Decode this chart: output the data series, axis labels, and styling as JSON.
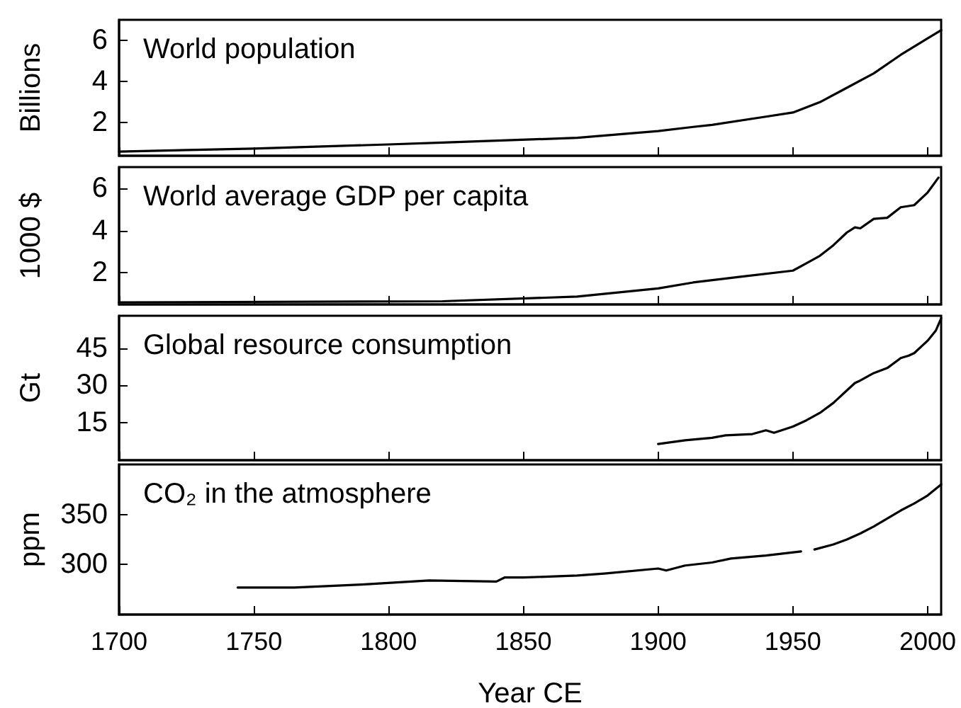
{
  "chart_data": [
    {
      "type": "line",
      "title": "World population",
      "ylabel": "Billions",
      "xlim": [
        1700,
        2005
      ],
      "xticks": [
        1700,
        1750,
        1800,
        1850,
        1900,
        1950,
        2000
      ],
      "ylim": [
        0.4,
        7
      ],
      "yticks": [
        2,
        4,
        6
      ],
      "tick_labels": "y",
      "color": "#000000",
      "x": [
        1700,
        1750,
        1800,
        1820,
        1870,
        1900,
        1913,
        1920,
        1940,
        1950,
        1960,
        1970,
        1980,
        1990,
        2000,
        2005
      ],
      "values": [
        0.6,
        0.75,
        0.95,
        1.04,
        1.27,
        1.6,
        1.8,
        1.9,
        2.3,
        2.5,
        3.0,
        3.7,
        4.4,
        5.3,
        6.1,
        6.5
      ]
    },
    {
      "type": "line",
      "title": "World average GDP per capita",
      "ylabel": "1000 $",
      "xlim": [
        1700,
        2005
      ],
      "xticks": [
        1700,
        1750,
        1800,
        1850,
        1900,
        1950,
        2000
      ],
      "ylim": [
        0.5,
        7
      ],
      "yticks": [
        2,
        4,
        6
      ],
      "tick_labels": "y",
      "color": "#000000",
      "x": [
        1700,
        1820,
        1870,
        1900,
        1913,
        1930,
        1950,
        1955,
        1960,
        1965,
        1970,
        1973,
        1975,
        1980,
        1985,
        1990,
        1995,
        2000,
        2004
      ],
      "values": [
        0.6,
        0.65,
        0.87,
        1.26,
        1.54,
        1.8,
        2.1,
        2.45,
        2.8,
        3.3,
        3.9,
        4.15,
        4.1,
        4.55,
        4.6,
        5.1,
        5.2,
        5.8,
        6.5
      ]
    },
    {
      "type": "line",
      "title": "Global resource consumption",
      "ylabel": "Gt",
      "xlim": [
        1700,
        2005
      ],
      "xticks": [
        1700,
        1750,
        1800,
        1850,
        1900,
        1950,
        2000
      ],
      "ylim": [
        0,
        58
      ],
      "yticks": [
        15,
        30,
        45
      ],
      "tick_labels": "y",
      "color": "#000000",
      "x": [
        1900,
        1910,
        1920,
        1925,
        1935,
        1940,
        1943,
        1950,
        1955,
        1960,
        1965,
        1970,
        1973,
        1975,
        1980,
        1985,
        1990,
        1993,
        1995,
        2000,
        2003,
        2005
      ],
      "values": [
        6.5,
        8,
        9,
        10,
        10.5,
        12,
        11,
        13.5,
        16,
        19,
        23,
        28,
        31,
        32,
        35,
        37,
        41,
        42,
        43,
        48,
        52,
        57
      ]
    },
    {
      "type": "line",
      "title": "CO₂ in the atmosphere",
      "ylabel": "ppm",
      "xlabel": "Year CE",
      "xlim": [
        1700,
        2005
      ],
      "xticks": [
        1700,
        1750,
        1800,
        1850,
        1900,
        1950,
        2000
      ],
      "ylim": [
        250,
        400
      ],
      "yticks": [
        300,
        350
      ],
      "color": "#000000",
      "x": [
        1744,
        1765,
        1790,
        1815,
        1840,
        1843,
        1850,
        1870,
        1880,
        1900,
        1903,
        1910,
        1920,
        1927,
        1940,
        1953,
        1955,
        1958,
        1965,
        1970,
        1975,
        1980,
        1985,
        1990,
        1995,
        2000,
        2005
      ],
      "values": [
        277,
        277,
        280,
        284,
        283,
        287,
        287,
        289,
        291,
        296,
        294,
        299,
        302,
        306,
        309,
        313,
        null,
        315,
        320,
        325,
        331,
        338,
        346,
        354,
        361,
        369,
        380
      ]
    }
  ]
}
